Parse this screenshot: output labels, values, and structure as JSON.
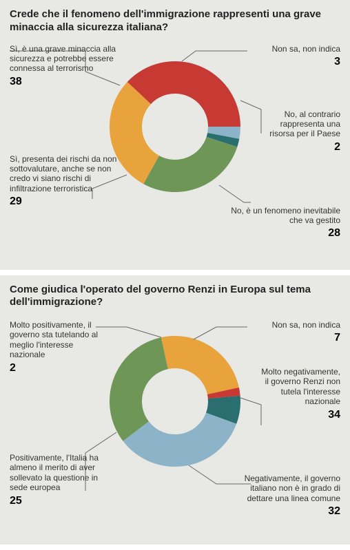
{
  "background_panel": "#e8e8e4",
  "text_color": "#333333",
  "value_color": "#000000",
  "question_fontsize": 15,
  "label_fontsize": 12,
  "value_fontsize": 16,
  "charts": [
    {
      "question": "Crede che il fenomeno dell'immigrazione rappresenti una grave minaccia alla sicurezza italiana?",
      "type": "donut",
      "inner_radius": 48,
      "outer_radius": 95,
      "start_angle_deg": 90,
      "direction": "clockwise",
      "segments": [
        {
          "label": "Non sa, non indica",
          "value": 3,
          "color": "#8db3c8"
        },
        {
          "label": "No, al contrario rappresenta una risorsa per il Paese",
          "value": 2,
          "color": "#2a6e70"
        },
        {
          "label": "No, è un fenomeno inevitabile che va gestito",
          "value": 28,
          "color": "#6e9657"
        },
        {
          "label": "Sì, presenta dei rischi da non sottovalutare, anche se non credo vi siano rischi di infiltrazione terroristica",
          "value": 29,
          "color": "#e8a33d"
        },
        {
          "label": "Sì, è una grave minaccia alla sicurezza e potrebbe essere connessa al terrorismo",
          "value": 38,
          "color": "#c73a33"
        }
      ]
    },
    {
      "question": "Come giudica l'operato del governo Renzi in Europa sul tema dell'immigrazione?",
      "type": "donut",
      "inner_radius": 48,
      "outer_radius": 95,
      "start_angle_deg": 85,
      "direction": "clockwise",
      "segments": [
        {
          "label": "Non sa, non indica",
          "value": 7,
          "color": "#2a6e70"
        },
        {
          "label": "Molto negativamente, il governo  Renzi non tutela l'interesse nazionale",
          "value": 34,
          "color": "#8db3c8"
        },
        {
          "label": "Negativamente, il governo italiano non è in grado di dettare una linea comune",
          "value": 32,
          "color": "#6e9657"
        },
        {
          "label": "Positivamente, l'Italia ha almeno il merito di aver sollevato la questione in sede europea",
          "value": 25,
          "color": "#e8a33d"
        },
        {
          "label": "Molto positivamente, il governo sta tutelando al meglio l'interesse nazionale",
          "value": 2,
          "color": "#c73a33"
        }
      ]
    }
  ]
}
